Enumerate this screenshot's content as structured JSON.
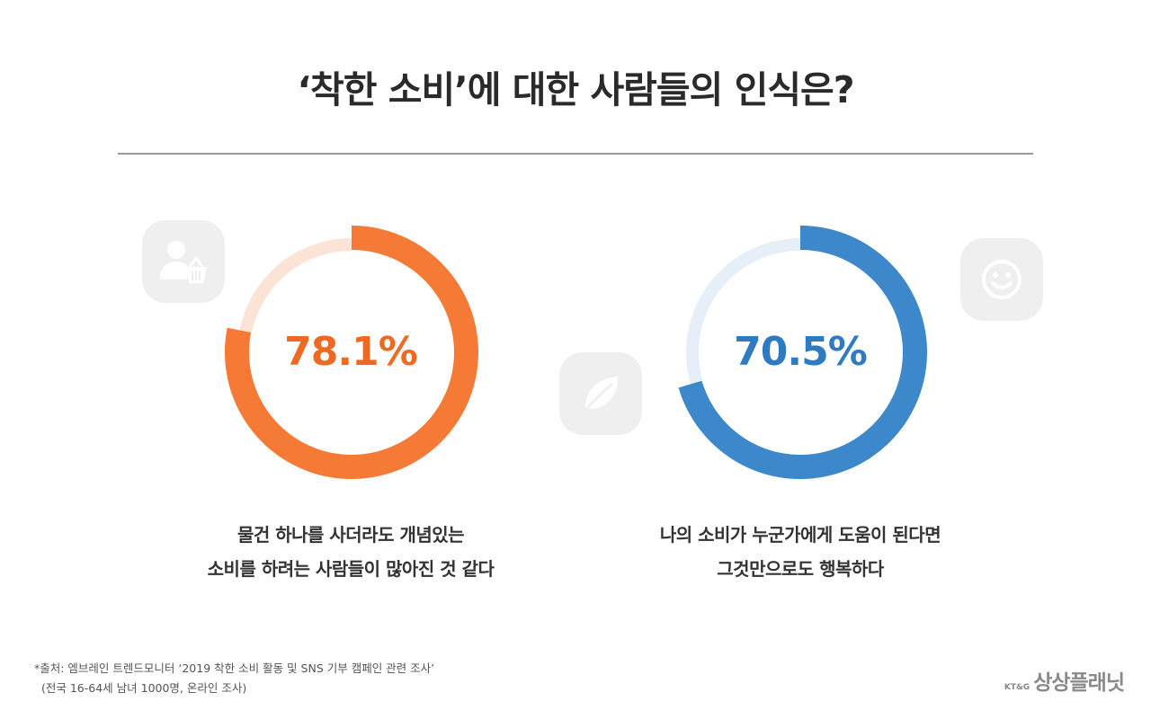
{
  "title": "‘착한 소비’에 대한 사람들의 인식은?",
  "chart_data": [
    {
      "type": "pie",
      "value": 78.1,
      "label": "78.1%",
      "caption_lines": [
        "물건 하나를 사더라도 개념있는",
        "소비를 하려는 사람들이 많아진 것 같다"
      ],
      "colors": {
        "fill": "#f47a36",
        "track": "#fbe3d6",
        "text": "#ee6a22"
      }
    },
    {
      "type": "pie",
      "value": 70.5,
      "label": "70.5%",
      "caption_lines": [
        "나의 소비가 누군가에게 도움이 된다면",
        "그것만으로도 행복하다"
      ],
      "colors": {
        "fill": "#3d87cb",
        "track": "#e6eef7",
        "text": "#2f7bc1"
      }
    }
  ],
  "icons": [
    "person-basket-icon",
    "leaf-icon",
    "smiley-icon"
  ],
  "source": {
    "line1": "*출처: 엠브레인 트렌드모니터 ‘2019 착한 소비 활동 및 SNS 기부 캠페인 관련 조사’",
    "line2": "(전국 16-64세 남녀 1000명, 온라인 조사)"
  },
  "logo": {
    "small": "KT&G",
    "main": "상상플래닛"
  }
}
